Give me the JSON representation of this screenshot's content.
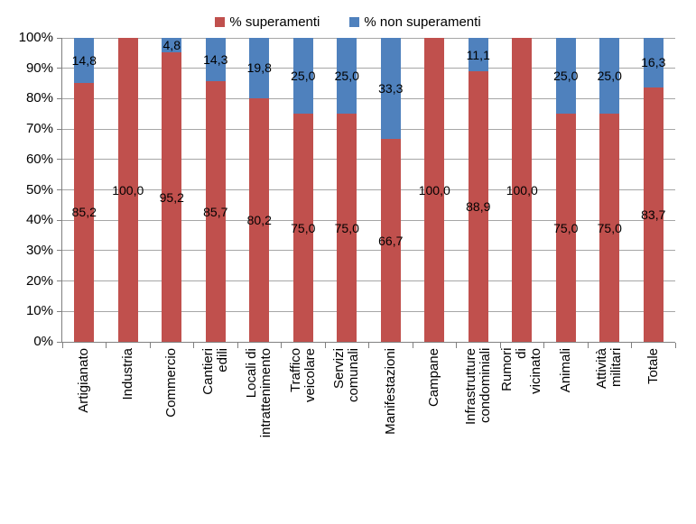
{
  "chart_data": {
    "type": "bar",
    "subtype": "stacked-100-percent",
    "title": "",
    "xlabel": "",
    "ylabel": "",
    "grid": true,
    "legend_position": "top-center",
    "categories": [
      "Artigianato",
      "Industria",
      "Commercio",
      "Cantieri edili",
      "Locali di intrattenimento",
      "Traffico veicolare",
      "Servizi comunali",
      "Manifestazioni",
      "Campane",
      "Infrastrutture\ncondominiali",
      "Rumori di vicinato",
      "Animali",
      "Attività militari",
      "Totale"
    ],
    "series": [
      {
        "name": "% superamenti",
        "color": "#C0504D",
        "values": [
          85.2,
          100.0,
          95.2,
          85.7,
          80.2,
          75.0,
          75.0,
          66.7,
          100.0,
          88.9,
          100.0,
          75.0,
          75.0,
          83.7
        ],
        "labels": [
          "85,2",
          "100,0",
          "95,2",
          "85,7",
          "80,2",
          "75,0",
          "75,0",
          "66,7",
          "100,0",
          "88,9",
          "100,0",
          "75,0",
          "75,0",
          "83,7"
        ]
      },
      {
        "name": "% non superamenti",
        "color": "#4F81BD",
        "values": [
          14.8,
          0,
          4.8,
          14.3,
          19.8,
          25.0,
          25.0,
          33.3,
          0,
          11.1,
          0,
          25.0,
          25.0,
          16.3
        ],
        "labels": [
          "14,8",
          "",
          "4,8",
          "14,3",
          "19,8",
          "25,0",
          "25,0",
          "33,3",
          "",
          "11,1",
          "",
          "25,0",
          "25,0",
          "16,3"
        ]
      }
    ],
    "y_axis": {
      "min": 0,
      "max": 100,
      "step": 10,
      "tick_labels": [
        "0%",
        "10%",
        "20%",
        "30%",
        "40%",
        "50%",
        "60%",
        "70%",
        "80%",
        "90%",
        "100%"
      ]
    }
  },
  "colors": {
    "background": "#FFFFFF",
    "gridline": "#A6A6A6",
    "axis": "#808080",
    "text": "#000000",
    "series_superamenti": "#C0504D",
    "series_non_superamenti": "#4F81BD"
  }
}
